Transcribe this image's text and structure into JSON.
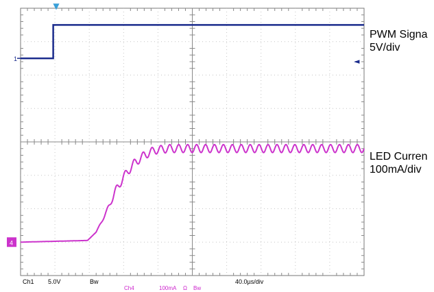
{
  "chart_data": {
    "type": "line",
    "title": "",
    "divisions": {
      "horizontal": 10,
      "vertical": 8
    },
    "time_base": "40.0µs/div",
    "series": [
      {
        "name": "PWM Signal",
        "channel": "1",
        "scale": "5V/div",
        "color": "#1a2b8c",
        "x_div": [
          0,
          0.95,
          0.95,
          10
        ],
        "y_div": [
          2.5,
          2.5,
          3.5,
          3.5
        ]
      },
      {
        "name": "LED Current",
        "channel": "4",
        "scale": "100mA/div",
        "color": "#cc33cc",
        "x_div": [
          0,
          1.95,
          2.2,
          2.5,
          2.75,
          3.0,
          3.3,
          3.6,
          3.9,
          4.3,
          4.7,
          10
        ],
        "y_div": [
          -3.0,
          -2.95,
          -2.7,
          -2.1,
          -1.5,
          -1.05,
          -0.65,
          -0.4,
          -0.25,
          -0.2,
          -0.2,
          -0.2
        ],
        "ripple_start_div": 2.2,
        "ripple_period_div": 0.26,
        "ripple_amplitude_div": 0.12
      }
    ],
    "markers": {
      "trigger": "▼",
      "ch1_ground": "1",
      "ch4_ground": "4",
      "trigger_level": "◄"
    },
    "grid": true
  },
  "labels": {
    "pwm_name": "PWM Signa",
    "pwm_scale": "5V/div",
    "led_name": "LED Curren",
    "led_scale": "100mA/div"
  },
  "status_bar": {
    "ch1": "Ch1",
    "ch1_scale": "5.0V",
    "ch1_bw": "Bw",
    "timebase": "40.0µs/div",
    "ch4": "Ch4",
    "ch4_scale": "100mA",
    "ch4_coupling": "Ω",
    "ch4_bw": "Bw"
  }
}
